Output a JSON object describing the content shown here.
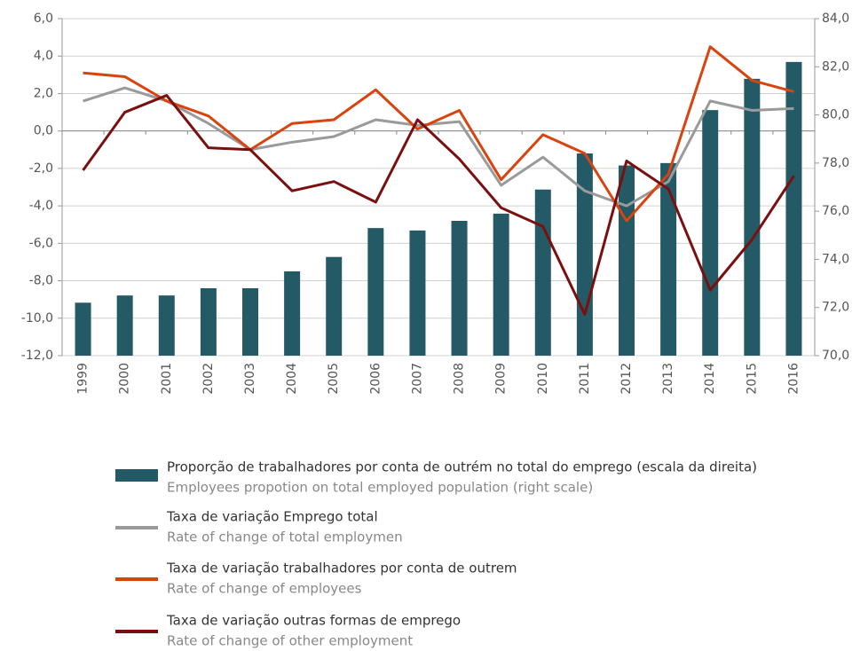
{
  "chart_data": {
    "type": "bar-line",
    "categories": [
      "1999",
      "2000",
      "2001",
      "2002",
      "2003",
      "2004",
      "2005",
      "2006",
      "2007",
      "2008",
      "2009",
      "2010",
      "2011",
      "2012",
      "2013",
      "2014",
      "2015",
      "2016"
    ],
    "series": [
      {
        "name": "Proporção de trabalhadores por conta de outrém no total do emprego (escala da direita)",
        "name_en": "Employees propotion on total employed population (right scale)",
        "type": "bar",
        "axis": "y2",
        "color": "#245a66",
        "values": [
          72.2,
          72.5,
          72.5,
          72.8,
          72.8,
          73.5,
          74.1,
          75.3,
          75.2,
          75.6,
          75.9,
          76.9,
          78.4,
          77.9,
          78.0,
          80.2,
          81.5,
          82.2
        ]
      },
      {
        "name": "Taxa de variação Emprego total",
        "name_en": "Rate of change of total employmen",
        "type": "line",
        "axis": "y",
        "color": "#9a9a9a",
        "values": [
          1.6,
          2.3,
          1.6,
          0.4,
          -1.0,
          -0.6,
          -0.3,
          0.6,
          0.3,
          0.5,
          -2.9,
          -1.4,
          -3.2,
          -4.0,
          -2.7,
          1.6,
          1.1,
          1.2
        ]
      },
      {
        "name": "Taxa de variação trabalhadores por conta de outrem",
        "name_en": "Rate of change of employees",
        "type": "line",
        "axis": "y",
        "color": "#d9430e",
        "values": [
          3.1,
          2.9,
          1.6,
          0.8,
          -1.0,
          0.4,
          0.6,
          2.2,
          0.1,
          1.1,
          -2.6,
          -0.2,
          -1.2,
          -4.8,
          -2.3,
          4.5,
          2.7,
          2.1
        ]
      },
      {
        "name": "Taxa de variação outras formas de emprego",
        "name_en": "Rate of change of other employment",
        "type": "line",
        "axis": "y",
        "color": "#7a0f0f",
        "values": [
          -2.1,
          1.0,
          1.9,
          -0.9,
          -1.0,
          -3.2,
          -2.7,
          -3.8,
          0.6,
          -1.5,
          -4.1,
          -5.1,
          -9.8,
          -1.6,
          -3.1,
          -8.5,
          -5.8,
          -2.4
        ]
      }
    ],
    "ylim": [
      -12,
      6
    ],
    "yticks": [
      {
        "value": -12,
        "label": "-12,0"
      },
      {
        "value": -10,
        "label": "-10,0"
      },
      {
        "value": -8,
        "label": "-8,0"
      },
      {
        "value": -6,
        "label": "-6,0"
      },
      {
        "value": -4,
        "label": "-4,0"
      },
      {
        "value": -2,
        "label": "-2,0"
      },
      {
        "value": 0,
        "label": "0,0"
      },
      {
        "value": 2,
        "label": "2,0"
      },
      {
        "value": 4,
        "label": "4,0"
      },
      {
        "value": 6,
        "label": "6,0"
      }
    ],
    "y2lim": [
      70,
      84
    ],
    "y2ticks": [
      {
        "value": 70,
        "label": "70,0"
      },
      {
        "value": 72,
        "label": "72,0"
      },
      {
        "value": 74,
        "label": "74,0"
      },
      {
        "value": 76,
        "label": "76,0"
      },
      {
        "value": 78,
        "label": "78,0"
      },
      {
        "value": 80,
        "label": "80,0"
      },
      {
        "value": 82,
        "label": "82,0"
      },
      {
        "value": 84,
        "label": "84,0"
      }
    ],
    "grid": true
  }
}
